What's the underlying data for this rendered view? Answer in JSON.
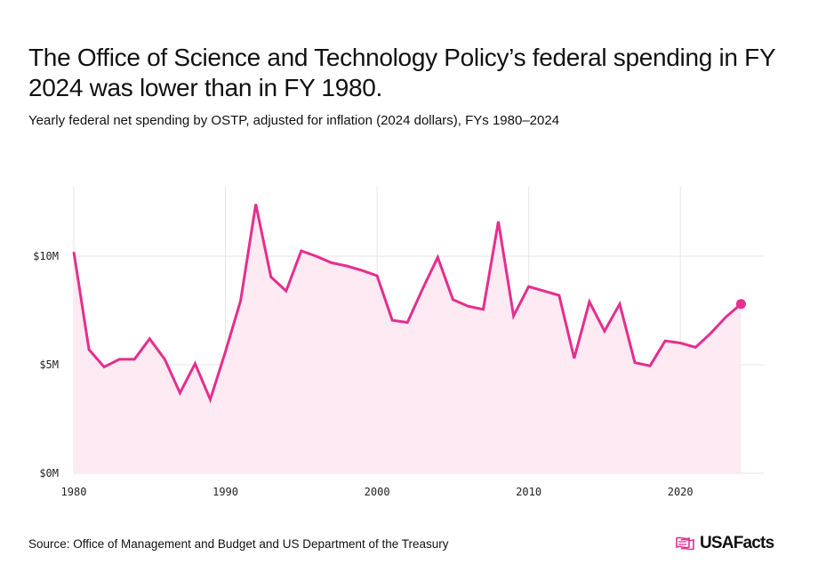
{
  "title": "The Office of Science and Technology Policy’s federal spending in FY 2024 was lower than in FY 1980.",
  "subtitle": "Yearly federal net spending by OSTP, adjusted for inflation (2024 dollars), FYs 1980–2024",
  "source": "Source: Office of Management and Budget and US Department of the Treasury",
  "brand": "USAFacts",
  "colors": {
    "line": "#e52e8e",
    "fill": "#fdeaf3",
    "grid": "#e6e6e6"
  },
  "chart_data": {
    "type": "line",
    "x": [
      1980,
      1981,
      1982,
      1983,
      1984,
      1985,
      1986,
      1987,
      1988,
      1989,
      1990,
      1991,
      1992,
      1993,
      1994,
      1995,
      1996,
      1997,
      1998,
      1999,
      2000,
      2001,
      2002,
      2003,
      2004,
      2005,
      2006,
      2007,
      2008,
      2009,
      2010,
      2011,
      2012,
      2013,
      2014,
      2015,
      2016,
      2017,
      2018,
      2019,
      2020,
      2021,
      2022,
      2023,
      2024
    ],
    "series": [
      {
        "values": [
          10.2,
          5.7,
          4.9,
          5.25,
          5.25,
          6.2,
          5.25,
          3.7,
          5.05,
          3.4,
          5.6,
          7.95,
          12.4,
          9.05,
          8.4,
          10.25,
          10.0,
          9.7,
          9.55,
          9.35,
          9.1,
          7.05,
          6.95,
          8.5,
          9.95,
          8.0,
          7.7,
          7.55,
          11.6,
          7.25,
          8.6,
          8.4,
          8.2,
          5.3,
          7.9,
          6.55,
          7.8,
          5.1,
          4.95,
          6.1,
          6.0,
          5.8,
          6.45,
          7.2,
          7.8
        ]
      }
    ],
    "y_ticks": [
      0,
      5,
      10
    ],
    "y_tick_labels": [
      "$0M",
      "$5M",
      "$10M"
    ],
    "x_ticks": [
      1980,
      1990,
      2000,
      2010,
      2020
    ],
    "x_tick_labels": [
      "1980",
      "1990",
      "2000",
      "2010",
      "2020"
    ],
    "xlim": [
      1980,
      2025.5
    ],
    "ylim": [
      0,
      13.2
    ],
    "grid": true,
    "area_fill": true,
    "end_marker": true
  }
}
